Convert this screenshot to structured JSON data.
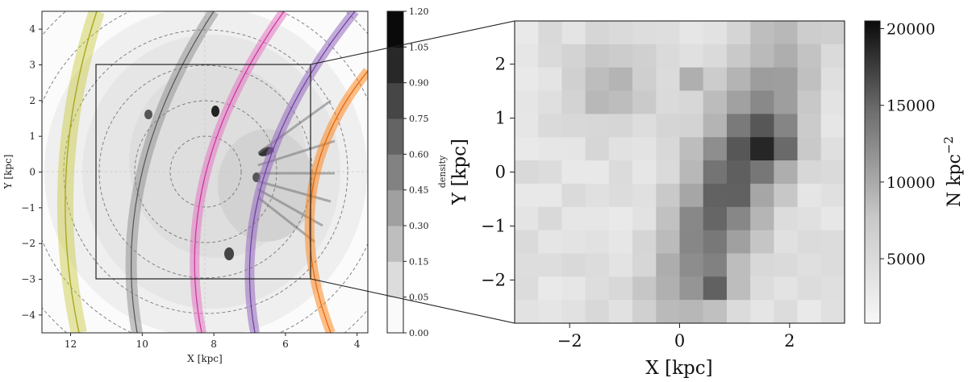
{
  "chart_data": [
    {
      "type": "heatmap",
      "xlabel": "X [kpc]",
      "ylabel": "Y [kpc]",
      "xlim": [
        12.8,
        3.7
      ],
      "ylim": [
        -4.5,
        4.5
      ],
      "x_ticks": [
        "12",
        "10",
        "8",
        "6",
        "4"
      ],
      "y_ticks": [
        "4",
        "3",
        "2",
        "1",
        "0",
        "−1",
        "−2",
        "−3",
        "−4"
      ],
      "colorbar": {
        "label": "density",
        "ticks": [
          "1.20",
          "1.05",
          "0.90",
          "0.75",
          "0.60",
          "0.45",
          "0.30",
          "0.15",
          "0.05",
          "0.00"
        ],
        "levels": [
          0.0,
          0.05,
          0.15,
          0.3,
          0.45,
          0.6,
          0.75,
          0.9,
          1.05,
          1.2
        ]
      },
      "arm_colors": [
        "#c8c83a",
        "#8c8c8c",
        "#e377c2",
        "#9467bd",
        "#ff7f0e"
      ],
      "zoom_box": {
        "x": [
          11.2,
          5.2
        ],
        "y": [
          -3,
          3
        ]
      }
    },
    {
      "type": "heatmap",
      "xlabel": "X [kpc]",
      "ylabel": "Y [kpc]",
      "xlim": [
        -3,
        3
      ],
      "ylim": [
        -2.8,
        2.8
      ],
      "x_ticks": [
        "−2",
        "0",
        "2"
      ],
      "y_ticks": [
        "2",
        "1",
        "0",
        "−1",
        "−2"
      ],
      "colorbar": {
        "label": "N kpc",
        "label_exponent": "−2",
        "ticks": [
          "20000",
          "15000",
          "10000",
          "5000"
        ],
        "range": [
          800,
          20500
        ]
      }
    }
  ]
}
